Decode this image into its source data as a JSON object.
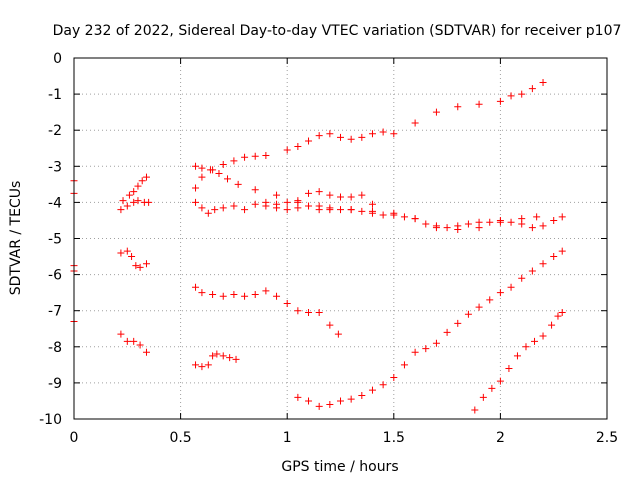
{
  "chart_data": {
    "type": "scatter",
    "title": "Day 232 of 2022, Sidereal Day-to-day VTEC variation (SDTVAR) for receiver p107",
    "xlabel": "GPS time / hours",
    "ylabel": "SDTVAR / TECUs",
    "xlim": [
      0,
      2.5
    ],
    "ylim": [
      -10,
      0
    ],
    "xticks": [
      0,
      0.5,
      1,
      1.5,
      2,
      2.5
    ],
    "xtick_labels": [
      "0",
      "0.5",
      "1",
      "1.5",
      "2",
      "2.5"
    ],
    "yticks": [
      0,
      -1,
      -2,
      -3,
      -4,
      -5,
      -6,
      -7,
      -8,
      -9,
      -10
    ],
    "ytick_labels": [
      "0",
      "-1",
      "-2",
      "-3",
      "-4",
      "-5",
      "-6",
      "-7",
      "-8",
      "-9",
      "-10"
    ],
    "grid": true,
    "marker": "+",
    "color": "#ff0000",
    "series": [
      {
        "x": [
          0.0,
          0.0
        ],
        "y": [
          -3.4,
          -3.75
        ]
      },
      {
        "x": [
          0.0,
          0.0
        ],
        "y": [
          -5.75,
          -5.9
        ]
      },
      {
        "x": [
          0.0
        ],
        "y": [
          -7.3
        ]
      },
      {
        "x": [
          0.23,
          0.26,
          0.28,
          0.3,
          0.32,
          0.34
        ],
        "y": [
          -3.95,
          -3.8,
          -3.7,
          -3.55,
          -3.4,
          -3.3
        ]
      },
      {
        "x": [
          0.22,
          0.25,
          0.28,
          0.3,
          0.33,
          0.35
        ],
        "y": [
          -4.2,
          -4.1,
          -4.0,
          -3.95,
          -4.0,
          -4.0
        ]
      },
      {
        "x": [
          0.22,
          0.25,
          0.27,
          0.29,
          0.31,
          0.34
        ],
        "y": [
          -5.4,
          -5.35,
          -5.5,
          -5.75,
          -5.8,
          -5.7
        ]
      },
      {
        "x": [
          0.22,
          0.25,
          0.28,
          0.31,
          0.34
        ],
        "y": [
          -7.65,
          -7.85,
          -7.85,
          -7.95,
          -8.15
        ]
      },
      {
        "x": [
          0.57,
          0.6,
          0.64,
          0.68,
          0.72,
          0.77,
          0.85,
          0.95,
          1.05,
          1.15,
          1.2,
          1.3,
          1.4,
          1.5,
          1.6,
          1.7,
          1.8,
          1.9,
          2.0,
          2.1,
          2.17
        ],
        "y": [
          -3.0,
          -3.05,
          -3.1,
          -3.2,
          -3.35,
          -3.5,
          -3.65,
          -3.8,
          -4.0,
          -4.2,
          -4.2,
          -4.2,
          -4.25,
          -4.3,
          -4.45,
          -4.65,
          -4.75,
          -4.7,
          -4.55,
          -4.45,
          -4.4
        ]
      },
      {
        "x": [
          0.57,
          0.6,
          0.65,
          0.7,
          0.75,
          0.8,
          0.85,
          0.9,
          1.0,
          1.05,
          1.1,
          1.15,
          1.2,
          1.25,
          1.3,
          1.35,
          1.4,
          1.45,
          1.5,
          1.6,
          1.7,
          1.8,
          1.9,
          2.0,
          2.05,
          2.1,
          2.15,
          2.2
        ],
        "y": [
          -3.6,
          -3.3,
          -3.1,
          -2.95,
          -2.85,
          -2.75,
          -2.72,
          -2.7,
          -2.55,
          -2.45,
          -2.3,
          -2.15,
          -2.1,
          -2.2,
          -2.25,
          -2.2,
          -2.1,
          -2.05,
          -2.1,
          -1.8,
          -1.5,
          -1.35,
          -1.28,
          -1.2,
          -1.05,
          -1.0,
          -0.85,
          -0.68
        ]
      },
      {
        "x": [
          0.57,
          0.6,
          0.63,
          0.66,
          0.7,
          0.75,
          0.8,
          0.85,
          0.9,
          0.95,
          1.0,
          1.05,
          1.1,
          1.15,
          1.2,
          1.25,
          1.3,
          1.35,
          1.4,
          1.45,
          1.5,
          1.55,
          1.6,
          1.65,
          1.7,
          1.75,
          1.8,
          1.85,
          1.9,
          1.95,
          2.0,
          2.05,
          2.1,
          2.15,
          2.2,
          2.25,
          2.29
        ],
        "y": [
          -4.0,
          -4.15,
          -4.3,
          -4.2,
          -4.15,
          -4.1,
          -4.2,
          -4.05,
          -4.1,
          -4.15,
          -4.2,
          -4.15,
          -4.1,
          -4.1,
          -4.15,
          -4.2,
          -4.2,
          -4.25,
          -4.3,
          -4.35,
          -4.35,
          -4.4,
          -4.45,
          -4.6,
          -4.7,
          -4.7,
          -4.65,
          -4.6,
          -4.55,
          -4.55,
          -4.5,
          -4.55,
          -4.6,
          -4.7,
          -4.65,
          -4.5,
          -4.4
        ]
      },
      {
        "x": [
          0.9,
          0.95,
          1.0,
          1.05,
          1.1,
          1.15,
          1.2,
          1.25,
          1.3,
          1.35,
          1.4
        ],
        "y": [
          -4.0,
          -4.05,
          -4.0,
          -3.95,
          -3.75,
          -3.7,
          -3.8,
          -3.85,
          -3.85,
          -3.8,
          -4.05
        ]
      },
      {
        "x": [
          0.57,
          0.6,
          0.65,
          0.7,
          0.75,
          0.8,
          0.85,
          0.9,
          0.95,
          1.0,
          1.05,
          1.1,
          1.15,
          1.2,
          1.24
        ],
        "y": [
          -6.35,
          -6.5,
          -6.55,
          -6.6,
          -6.55,
          -6.6,
          -6.55,
          -6.45,
          -6.6,
          -6.8,
          -7.0,
          -7.05,
          -7.05,
          -7.4,
          -7.65
        ]
      },
      {
        "x": [
          0.57,
          0.6,
          0.63,
          0.65,
          0.67,
          0.7,
          0.73,
          0.76
        ],
        "y": [
          -8.5,
          -8.55,
          -8.5,
          -8.25,
          -8.2,
          -8.25,
          -8.3,
          -8.35
        ]
      },
      {
        "x": [
          1.05,
          1.1,
          1.15,
          1.2,
          1.25,
          1.3,
          1.35,
          1.4,
          1.45,
          1.5,
          1.55,
          1.6,
          1.65,
          1.7,
          1.75,
          1.8,
          1.85,
          1.9,
          1.95,
          2.0,
          2.05,
          2.1,
          2.15,
          2.2,
          2.25,
          2.29
        ],
        "y": [
          -9.4,
          -9.5,
          -9.65,
          -9.6,
          -9.5,
          -9.45,
          -9.35,
          -9.2,
          -9.05,
          -8.85,
          -8.5,
          -8.15,
          -8.05,
          -7.9,
          -7.6,
          -7.35,
          -7.1,
          -6.9,
          -6.7,
          -6.5,
          -6.35,
          -6.1,
          -5.9,
          -5.7,
          -5.5,
          -5.35
        ]
      },
      {
        "x": [
          1.88,
          1.92,
          1.96,
          2.0,
          2.04,
          2.08,
          2.12,
          2.16,
          2.2,
          2.24,
          2.27,
          2.29
        ],
        "y": [
          -9.75,
          -9.4,
          -9.15,
          -8.95,
          -8.6,
          -8.25,
          -8.0,
          -7.85,
          -7.7,
          -7.4,
          -7.15,
          -7.05
        ]
      }
    ]
  }
}
